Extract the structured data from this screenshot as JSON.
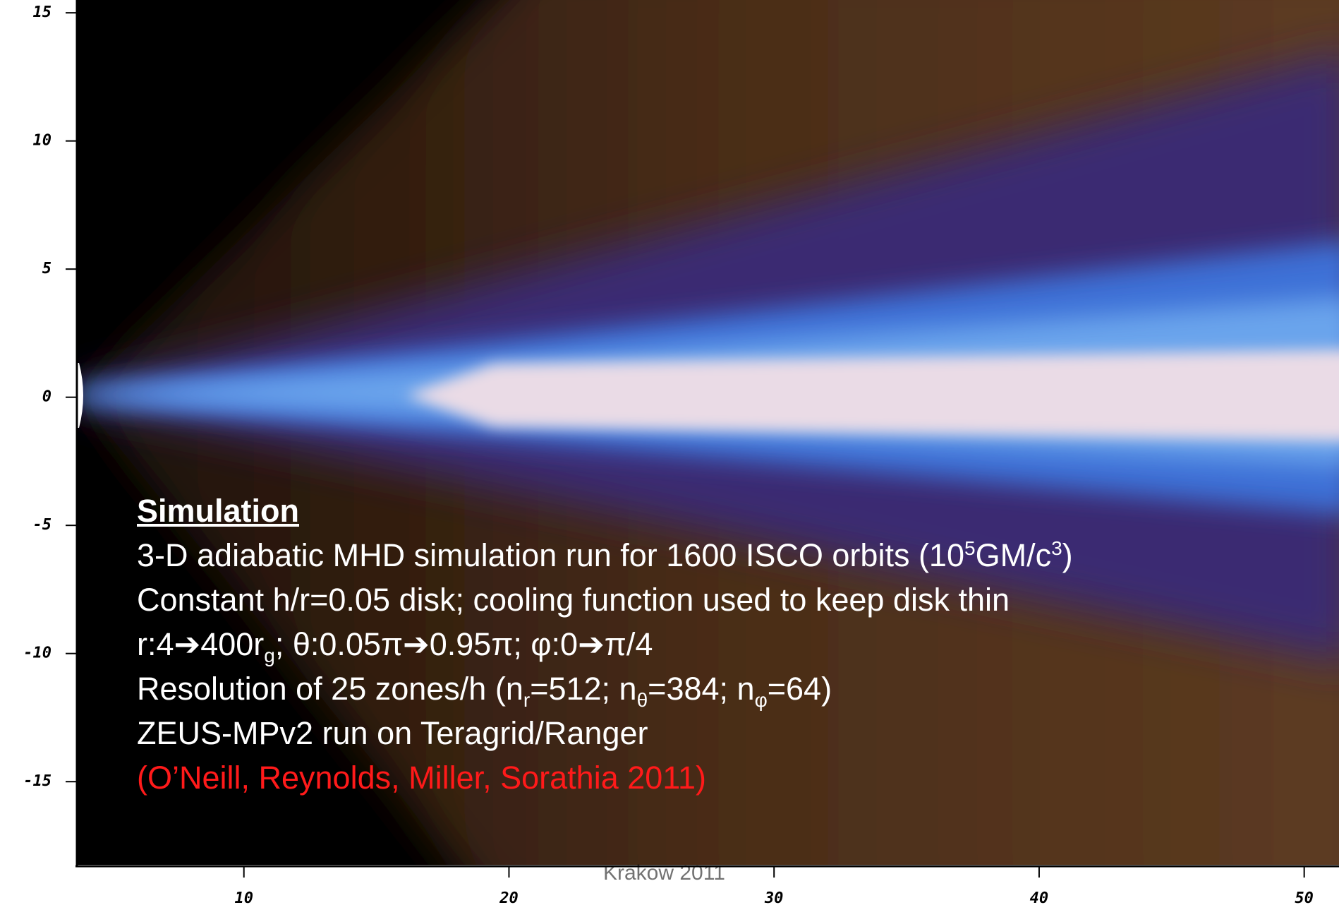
{
  "chart_data": {
    "type": "image",
    "xlim": [
      3.7,
      51.1
    ],
    "ylim": [
      -18.3,
      15.5
    ],
    "xticks": [
      10,
      20,
      30,
      40,
      50
    ],
    "yticks": [
      15,
      10,
      5,
      0,
      -5,
      -10,
      -15
    ],
    "heading": "Simulation",
    "lines": [
      [
        "3-D adiabatic MHD simulation run for 1600 ISCO orbits (10",
        "5",
        "GM/c",
        "3",
        ")"
      ],
      [
        "Constant h/r=0.05 disk; cooling function used to keep disk thin"
      ],
      [
        "r:4➔400r",
        "g",
        "; θ:0.05π➔0.95π; φ:0➔π/4"
      ],
      [
        "Resolution of 25 zones/h (n",
        "r",
        "=512; n",
        "θ",
        "=384; n",
        "φ",
        "=64)"
      ],
      [
        "ZEUS-MPv2 run on Teragrid/Ranger"
      ]
    ],
    "citation": "(O’Neill, Reynolds, Miller, Sorathia 2011)",
    "footer": "Krakow 2011"
  }
}
